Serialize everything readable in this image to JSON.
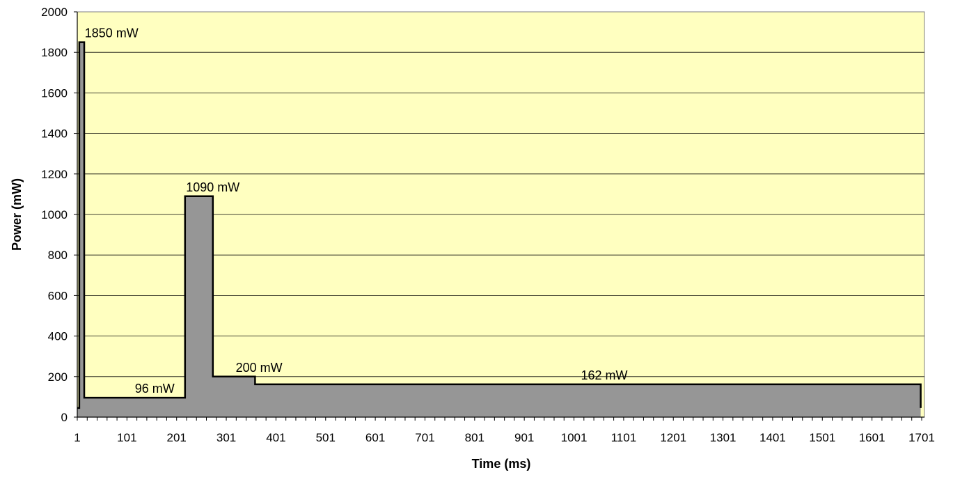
{
  "chart_data": {
    "type": "area",
    "xlabel": "Time (ms)",
    "ylabel": "Power (mW)",
    "xlim": [
      1,
      1701
    ],
    "ylim": [
      0,
      2000
    ],
    "x_ticks": [
      1,
      101,
      201,
      301,
      401,
      501,
      601,
      701,
      801,
      901,
      1001,
      1101,
      1201,
      1301,
      1401,
      1501,
      1601,
      1701
    ],
    "y_ticks": [
      0,
      200,
      400,
      600,
      800,
      1000,
      1200,
      1400,
      1600,
      1800,
      2000
    ],
    "grid": "horizontal",
    "plot_background": "#ffffc0",
    "fill_color": "#969696",
    "line_color": "#000000",
    "series": [
      {
        "x": [
          1,
          5,
          5,
          15,
          15,
          218,
          218,
          274,
          274,
          359,
          359,
          1699,
          1699
        ],
        "y": [
          45,
          45,
          1850,
          1850,
          96,
          96,
          1090,
          1090,
          200,
          200,
          162,
          162,
          45
        ]
      }
    ],
    "annotations": [
      {
        "text": "1850 mW",
        "x": 16,
        "y": 1850
      },
      {
        "text": "96 mW",
        "x": 117,
        "y": 96
      },
      {
        "text": "1090 mW",
        "x": 220,
        "y": 1090
      },
      {
        "text": "200 mW",
        "x": 320,
        "y": 200
      },
      {
        "text": "162 mW",
        "x": 1015,
        "y": 162
      }
    ]
  }
}
